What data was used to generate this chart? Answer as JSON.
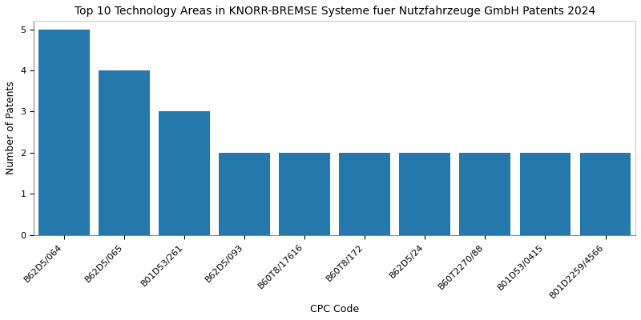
{
  "title": "Top 10 Technology Areas in KNORR-BREMSE Systeme fuer Nutzfahrzeuge GmbH Patents 2024",
  "xlabel": "CPC Code",
  "ylabel": "Number of Patents",
  "categories": [
    "B62D5/064",
    "B62D5/065",
    "B01D53/261",
    "B62D5/093",
    "B60T8/17616",
    "B60T8/172",
    "B62D5/24",
    "B60T2270/88",
    "B01D53/0415",
    "B01D2259/4566"
  ],
  "values": [
    5,
    4,
    3,
    2,
    2,
    2,
    2,
    2,
    2,
    2
  ],
  "bar_color": "#2478ab",
  "ylim": [
    0,
    5.2
  ],
  "yticks": [
    0,
    1,
    2,
    3,
    4,
    5
  ],
  "title_fontsize": 10,
  "axis_label_fontsize": 9,
  "tick_fontsize": 8,
  "bar_width": 0.85
}
